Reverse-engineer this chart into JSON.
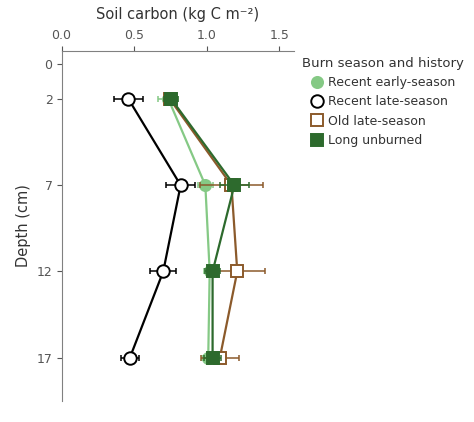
{
  "title": "Soil carbon (kg C m⁻²)",
  "ylabel": "Depth (cm)",
  "xlim": [
    0.0,
    1.6
  ],
  "ylim": [
    19.5,
    -0.8
  ],
  "xticks": [
    0.0,
    0.5,
    1.0,
    1.5
  ],
  "yticks": [
    0,
    2,
    7,
    12,
    17
  ],
  "legend_title": "Burn season and history",
  "series": [
    {
      "label": "Recent early-season",
      "color": "#85c985",
      "marker": "o",
      "marker_face": "#85c985",
      "marker_edge": "#85c985",
      "marker_size": 8,
      "linewidth": 1.6,
      "depths": [
        2,
        7,
        12,
        17
      ],
      "values": [
        0.735,
        0.99,
        1.02,
        1.01
      ],
      "xerr_low": [
        0.07,
        0.05,
        0.04,
        0.04
      ],
      "xerr_high": [
        0.07,
        0.05,
        0.04,
        0.04
      ]
    },
    {
      "label": "Recent late-season",
      "color": "#000000",
      "marker": "o",
      "marker_face": "#ffffff",
      "marker_edge": "#000000",
      "marker_size": 9,
      "linewidth": 1.6,
      "depths": [
        2,
        7,
        12,
        17
      ],
      "values": [
        0.46,
        0.82,
        0.7,
        0.47
      ],
      "xerr_low": [
        0.1,
        0.1,
        0.09,
        0.06
      ],
      "xerr_high": [
        0.1,
        0.1,
        0.09,
        0.06
      ]
    },
    {
      "label": "Old late-season",
      "color": "#8B5A2B",
      "marker": "s",
      "marker_face": "#ffffff",
      "marker_edge": "#8B5A2B",
      "marker_size": 8,
      "linewidth": 1.6,
      "depths": [
        2,
        7,
        12,
        17
      ],
      "values": [
        0.745,
        1.17,
        1.21,
        1.09
      ],
      "xerr_low": [
        0.04,
        0.22,
        0.19,
        0.13
      ],
      "xerr_high": [
        0.04,
        0.22,
        0.19,
        0.13
      ]
    },
    {
      "label": "Long unburned",
      "color": "#2d6a2d",
      "marker": "s",
      "marker_face": "#2d6a2d",
      "marker_edge": "#2d6a2d",
      "marker_size": 8,
      "linewidth": 1.6,
      "depths": [
        2,
        7,
        12,
        17
      ],
      "values": [
        0.755,
        1.19,
        1.04,
        1.04
      ],
      "xerr_low": [
        0.05,
        0.1,
        0.05,
        0.06
      ],
      "xerr_high": [
        0.05,
        0.1,
        0.05,
        0.06
      ]
    }
  ],
  "background_color": "#ffffff",
  "spine_color": "#808080",
  "tick_color": "#555555",
  "font_color": "#333333"
}
